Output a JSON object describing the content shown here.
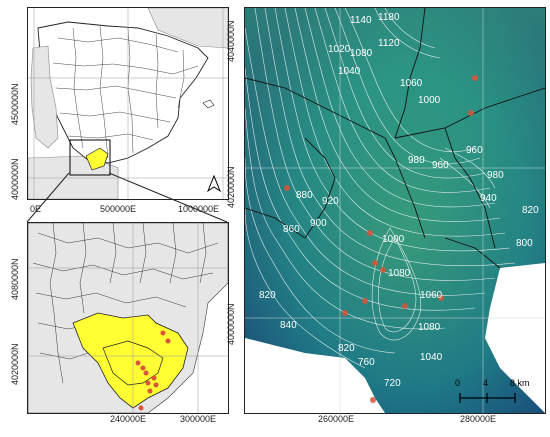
{
  "iberia_map": {
    "y_ticks": [
      "4500000N",
      "4000000N"
    ],
    "x_ticks": [
      "0E",
      "500000E",
      "1000000E"
    ]
  },
  "regional_map": {
    "y_ticks": [
      "4080000N",
      "4020000N"
    ],
    "x_ticks": [
      "240000E",
      "300000E"
    ]
  },
  "elevation_map": {
    "y_ticks": [
      "4040000N",
      "4020000N",
      "4000000N"
    ],
    "x_ticks": [
      "260000E",
      "280000E"
    ],
    "contours": [
      "1140",
      "1180",
      "1120",
      "1080",
      "1020",
      "1040",
      "1060",
      "1000",
      "960",
      "980",
      "960",
      "980",
      "940",
      "880",
      "920",
      "900",
      "860",
      "1000",
      "1080",
      "1060",
      "1080",
      "1040",
      "820",
      "840",
      "820",
      "760",
      "720",
      "800",
      "820"
    ],
    "scale_bar": {
      "ticks": [
        "0",
        "4",
        "8 km"
      ]
    }
  },
  "colors": {
    "land": "#e9e9e9",
    "sea": "#ffffff",
    "highlight": "#ffff33",
    "points": "#d9543a",
    "elevation_low": "#1a4b7a",
    "elevation_mid": "#1f8b8b",
    "elevation_high": "#3fb07a"
  },
  "icons": [
    "north-arrow-icon"
  ]
}
